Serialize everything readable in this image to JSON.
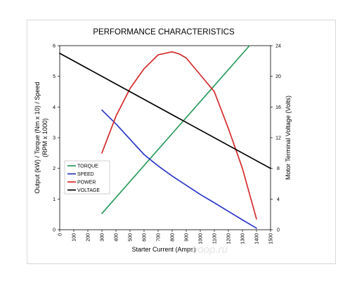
{
  "chart_data": {
    "type": "line",
    "title": "PERFORMANCE CHARACTERISTICS",
    "xlabel": "Starter Current (Amps)",
    "ylabel_left_line1": "Output (kW) / Torque (Nm x 10) / Speed",
    "ylabel_left_line2": "(RPM x 1000)",
    "ylabel_right": "Motor Terminal Voltage (Volts)",
    "xlim": [
      0,
      1500
    ],
    "ylim_left": [
      0,
      6
    ],
    "ylim_right": [
      0,
      24
    ],
    "x_ticks": [
      "0",
      "100",
      "200",
      "300",
      "400",
      "500",
      "600",
      "700",
      "800",
      "900",
      "1000",
      "1100",
      "1200",
      "1300",
      "1400",
      "1500"
    ],
    "y_left_ticks": [
      "0",
      "1",
      "2",
      "3",
      "4",
      "5",
      "6"
    ],
    "y_right_ticks": [
      "0",
      "4",
      "8",
      "12",
      "16",
      "20",
      "24"
    ],
    "grid": false,
    "legend_position": "left-middle",
    "series": [
      {
        "name": "TORQUE",
        "axis": "left",
        "color": "#2a9a5a",
        "x": [
          300,
          1350
        ],
        "y": [
          0.53,
          6.0
        ]
      },
      {
        "name": "SPEED",
        "axis": "left",
        "color": "#2a35c8",
        "x": [
          300,
          400,
          500,
          600,
          700,
          800,
          900,
          1000,
          1100,
          1200,
          1300,
          1400
        ],
        "y": [
          3.9,
          3.45,
          2.95,
          2.45,
          2.08,
          1.75,
          1.45,
          1.15,
          0.88,
          0.6,
          0.32,
          0.05
        ]
      },
      {
        "name": "POWER",
        "axis": "left",
        "color": "#d42a2a",
        "x": [
          300,
          400,
          500,
          600,
          700,
          800,
          850,
          900,
          1000,
          1100,
          1200,
          1300,
          1400
        ],
        "y": [
          2.5,
          3.7,
          4.6,
          5.25,
          5.7,
          5.8,
          5.73,
          5.6,
          5.05,
          4.5,
          3.3,
          2.0,
          0.35
        ]
      },
      {
        "name": "VOLTAGE",
        "axis": "right",
        "color": "#000000",
        "x": [
          0,
          1500
        ],
        "y": [
          23.0,
          8.0
        ]
      }
    ],
    "watermark": "ooop.ru"
  }
}
